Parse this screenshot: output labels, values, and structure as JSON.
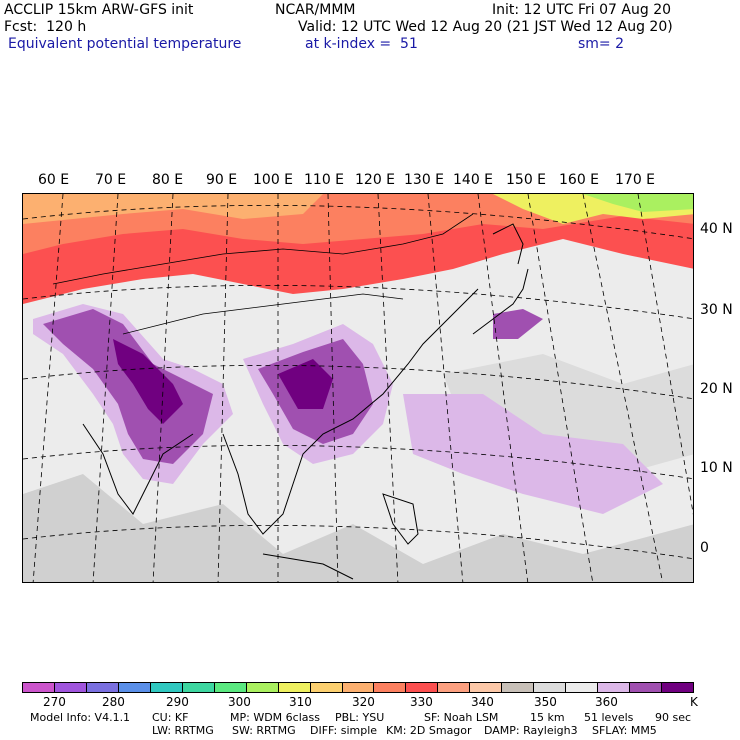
{
  "header": {
    "model": "ACCLIP 15km ARW-GFS init",
    "center": "NCAR/MMM",
    "init": "Init: 12 UTC Fri 07 Aug 20",
    "fcst": "Fcst:  120 h",
    "valid": "Valid: 12 UTC Wed 12 Aug 20 (21 JST Wed 12 Aug 20)",
    "field": "Equivalent potential temperature",
    "level": "at k-index =  51",
    "smooth": "sm= 2"
  },
  "map": {
    "longitude_labels": [
      "60 E",
      "70 E",
      "80 E",
      "90 E",
      "100 E",
      "110 E",
      "120 E",
      "130 E",
      "140 E",
      "150 E",
      "160 E",
      "170 E"
    ],
    "latitude_labels": [
      "40 N",
      "30 N",
      "20 N",
      "10 N",
      "0"
    ]
  },
  "colorbar": {
    "colors": [
      "#cc55cc",
      "#a055dd",
      "#7a70e0",
      "#5a8fe8",
      "#30c8c0",
      "#3dd6a0",
      "#5ae880",
      "#aaf060",
      "#eef060",
      "#fcd070",
      "#fcb070",
      "#fc8060",
      "#fc5050",
      "#fca080",
      "#fcc8a8",
      "#c8c0b8",
      "#dcdcdc",
      "#ececec",
      "#dcb8e8",
      "#a050b0",
      "#700080"
    ],
    "tick_labels": [
      "270",
      "280",
      "290",
      "300",
      "310",
      "320",
      "330",
      "340",
      "350",
      "360"
    ],
    "unit": "K"
  },
  "footer": {
    "line1": [
      "Model Info: V4.1.1",
      "CU: KF",
      "MP: WDM 6class",
      "PBL: YSU",
      "SF: Noah LSM",
      "15 km",
      "51 levels",
      "90 sec"
    ],
    "line2": [
      "LW: RRTMG",
      "SW: RRTMG",
      "DIFF: simple",
      "KM: 2D Smagor",
      "DAMP: Rayleigh3",
      "SFLAY: MM5"
    ]
  }
}
